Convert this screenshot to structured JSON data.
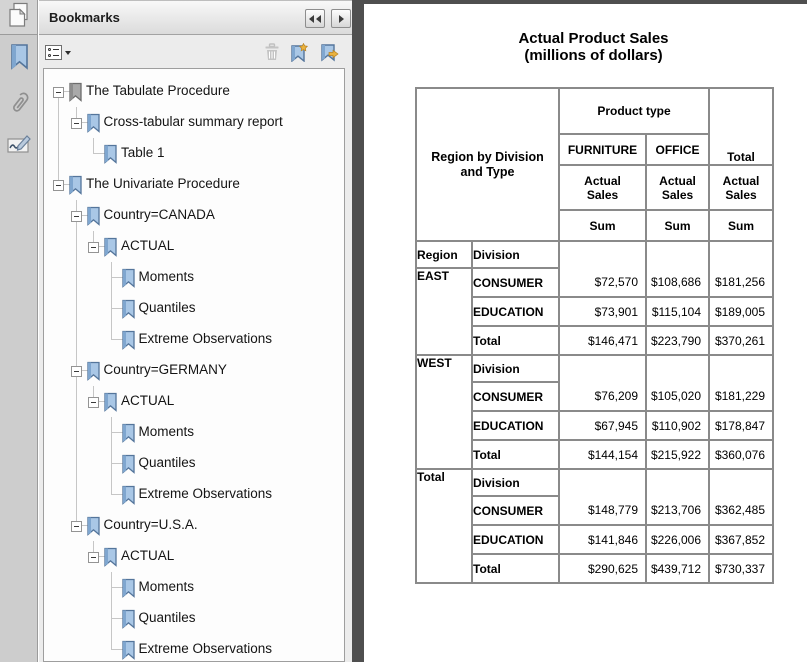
{
  "sidebar": {
    "corner_icon": "page-thumbnails",
    "panels": [
      {
        "name": "bookmarks",
        "active": true
      },
      {
        "name": "attachments",
        "active": false
      },
      {
        "name": "signatures",
        "active": false
      }
    ]
  },
  "panel": {
    "title": "Bookmarks",
    "header_buttons": [
      {
        "icon": "collapse-double-left"
      },
      {
        "icon": "forward-right"
      }
    ],
    "toolbar": {
      "options_icon": "bookmark-options-menu",
      "delete_icon": "trash",
      "delete_disabled": true,
      "new_icon": "new-bookmark",
      "export_icon": "export-bookmark"
    }
  },
  "tree": {
    "items": [
      {
        "label": "The Tabulate Procedure",
        "depth": 0,
        "expander": true,
        "icon": "gray"
      },
      {
        "label": "Cross-tabular summary report",
        "depth": 1,
        "expander": true,
        "icon": "blue"
      },
      {
        "label": "Table 1",
        "depth": 2,
        "expander": false,
        "icon": "blue"
      },
      {
        "label": "The Univariate Procedure",
        "depth": 0,
        "expander": true,
        "icon": "blue"
      },
      {
        "label": "Country=CANADA",
        "depth": 1,
        "expander": true,
        "icon": "blue"
      },
      {
        "label": "ACTUAL",
        "depth": 2,
        "expander": true,
        "icon": "blue"
      },
      {
        "label": "Moments",
        "depth": 3,
        "expander": false,
        "icon": "blue"
      },
      {
        "label": "Quantiles",
        "depth": 3,
        "expander": false,
        "icon": "blue"
      },
      {
        "label": "Extreme Observations",
        "depth": 3,
        "expander": false,
        "icon": "blue"
      },
      {
        "label": "Country=GERMANY",
        "depth": 1,
        "expander": true,
        "icon": "blue"
      },
      {
        "label": "ACTUAL",
        "depth": 2,
        "expander": true,
        "icon": "blue"
      },
      {
        "label": "Moments",
        "depth": 3,
        "expander": false,
        "icon": "blue"
      },
      {
        "label": "Quantiles",
        "depth": 3,
        "expander": false,
        "icon": "blue"
      },
      {
        "label": "Extreme Observations",
        "depth": 3,
        "expander": false,
        "icon": "blue"
      },
      {
        "label": "Country=U.S.A.",
        "depth": 1,
        "expander": true,
        "icon": "blue"
      },
      {
        "label": "ACTUAL",
        "depth": 2,
        "expander": true,
        "icon": "blue"
      },
      {
        "label": "Moments",
        "depth": 3,
        "expander": false,
        "icon": "blue"
      },
      {
        "label": "Quantiles",
        "depth": 3,
        "expander": false,
        "icon": "blue"
      },
      {
        "label": "Extreme Observations",
        "depth": 3,
        "expander": false,
        "icon": "blue"
      }
    ]
  },
  "document": {
    "title_line1": "Actual Product Sales",
    "title_line2": "(millions of dollars)",
    "table": {
      "corner_label": "Region by Division\nand Type",
      "product_type_label": "Product type",
      "total_col_label": "Total",
      "product_headers": [
        "FURNITURE",
        "OFFICE"
      ],
      "measure_label": "Actual\nSales",
      "stat_label": "Sum",
      "region_col_label": "Region",
      "division_col_label": "Division",
      "blocks": [
        {
          "region": "EAST",
          "region_in_label_row": false,
          "rows": [
            [
              "CONSUMER",
              "$72,570",
              "$108,686",
              "$181,256"
            ],
            [
              "EDUCATION",
              "$73,901",
              "$115,104",
              "$189,005"
            ],
            [
              "Total",
              "$146,471",
              "$223,790",
              "$370,261"
            ]
          ]
        },
        {
          "region": "WEST",
          "region_in_label_row": true,
          "rows": [
            [
              "CONSUMER",
              "$76,209",
              "$105,020",
              "$181,229"
            ],
            [
              "EDUCATION",
              "$67,945",
              "$110,902",
              "$178,847"
            ],
            [
              "Total",
              "$144,154",
              "$215,922",
              "$360,076"
            ]
          ]
        },
        {
          "region": "Total",
          "region_in_label_row": true,
          "rows": [
            [
              "CONSUMER",
              "$148,779",
              "$213,706",
              "$362,485"
            ],
            [
              "EDUCATION",
              "$141,846",
              "$226,006",
              "$367,852"
            ],
            [
              "Total",
              "$290,625",
              "$439,712",
              "$730,337"
            ]
          ]
        }
      ]
    }
  },
  "colors": {
    "bookmark_blue": "#a9c7e6",
    "bookmark_blue_stroke": "#54759b",
    "bookmark_gray": "#a9a9a9",
    "bookmark_gray_stroke": "#6c6c6c",
    "gold": "#e2a33c",
    "splitter": "#4f4f4f",
    "table_border": "#8a8a8a"
  }
}
